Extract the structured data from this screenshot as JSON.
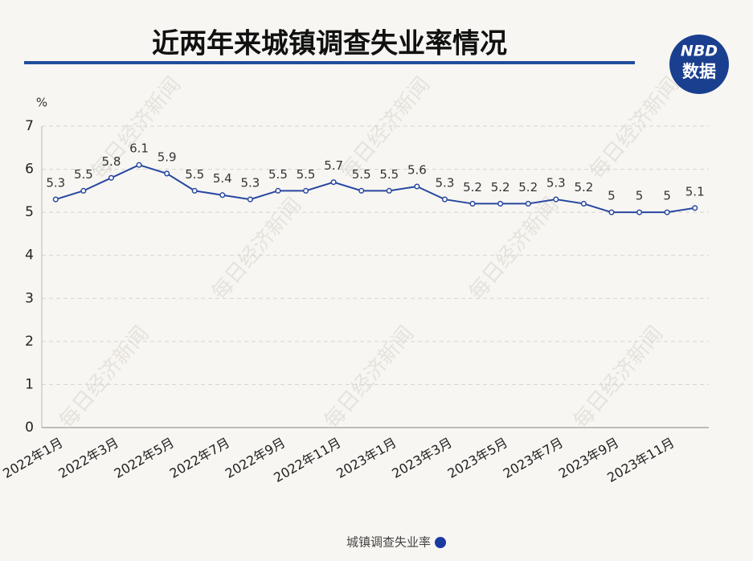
{
  "chart_data": {
    "type": "line",
    "title": "近两年来城镇调查失业率情况",
    "y_label": "%",
    "categories": [
      "2022年1月",
      null,
      "2022年3月",
      null,
      "2022年5月",
      null,
      "2022年7月",
      null,
      "2022年9月",
      null,
      "2022年11月",
      null,
      "2023年1月",
      null,
      "2023年3月",
      null,
      "2023年5月",
      null,
      "2023年7月",
      null,
      "2023年9月",
      null,
      "2023年11月",
      null
    ],
    "series": [
      {
        "name": "城镇调查失业率",
        "color": "#2747a0",
        "values": [
          5.3,
          5.5,
          5.8,
          6.1,
          5.9,
          5.5,
          5.4,
          5.3,
          5.5,
          5.5,
          5.7,
          5.5,
          5.5,
          5.6,
          5.3,
          5.2,
          5.2,
          5.2,
          5.3,
          5.2,
          5,
          5,
          5,
          5.1
        ]
      }
    ],
    "ylim": [
      0,
      7
    ],
    "yticks": [
      0,
      1,
      2,
      3,
      4,
      5,
      6,
      7
    ],
    "grid": true,
    "legend": "bottom"
  },
  "logo": [
    "NBD",
    "数据"
  ],
  "watermark": "每日经济新闻"
}
